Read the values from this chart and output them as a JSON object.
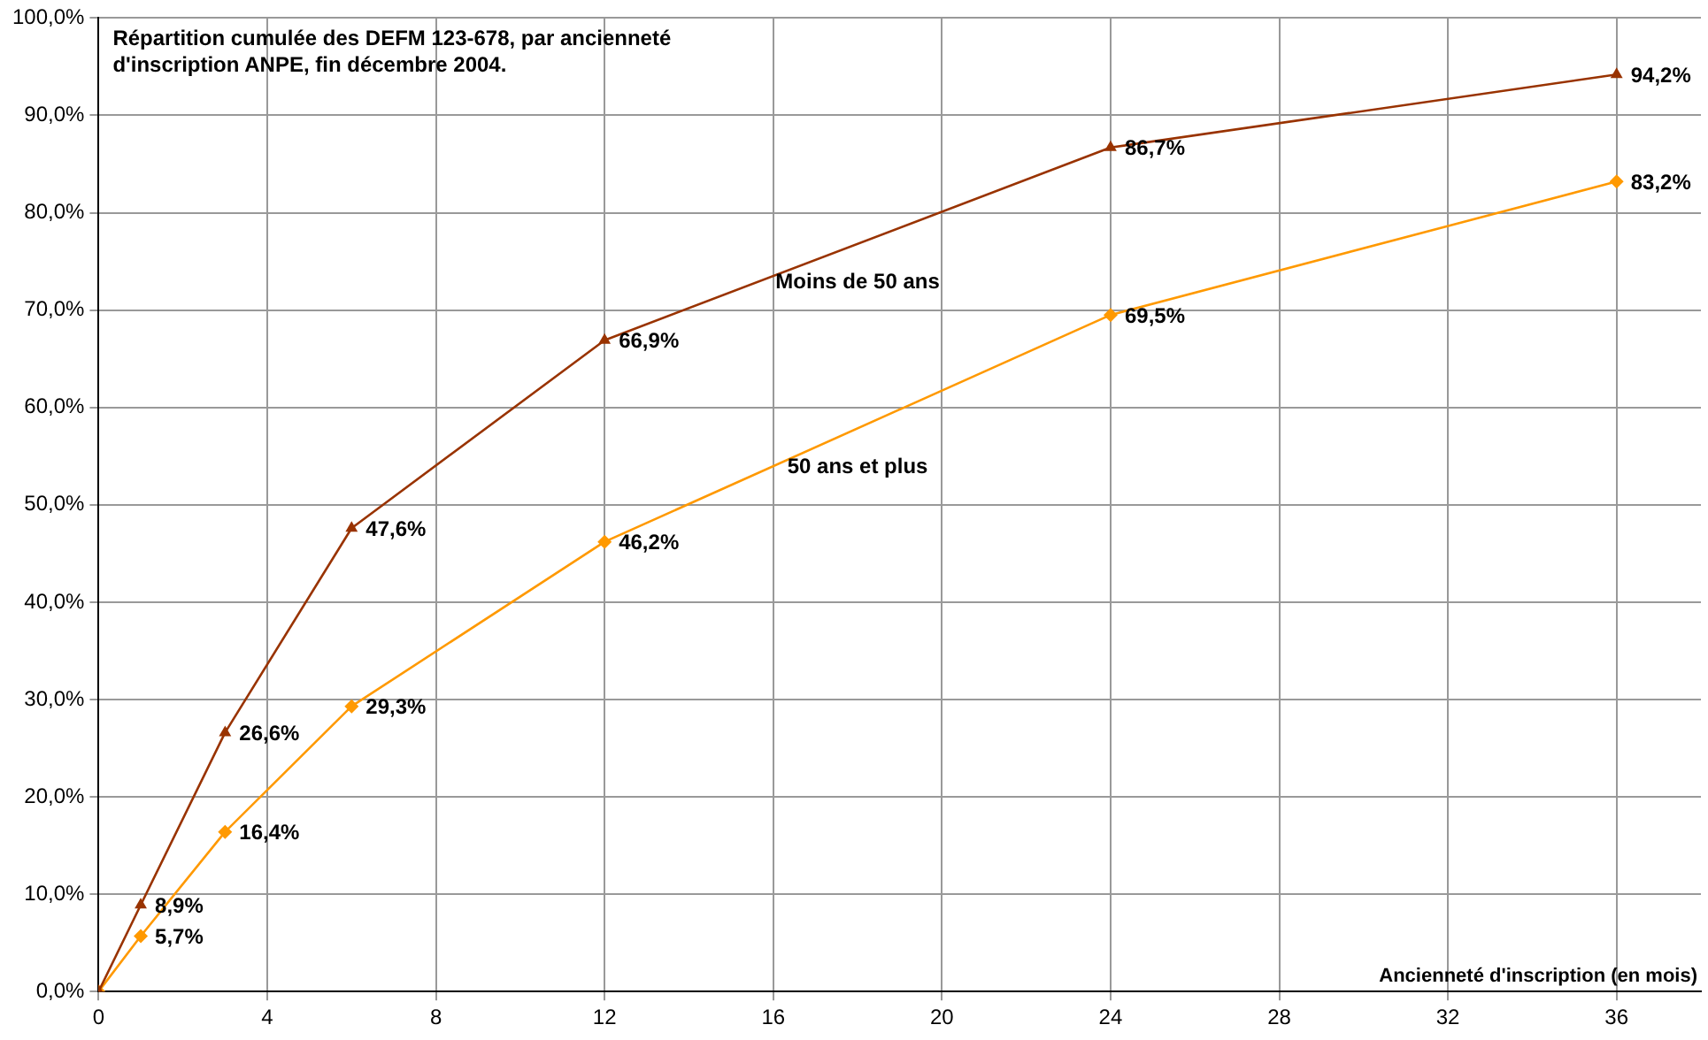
{
  "chart_data": {
    "type": "line",
    "title": "Répartition cumulée des DEFM 123-678, par ancienneté\nd'inscription ANPE, fin décembre 2004.",
    "xlabel": "Ancienneté d'inscription (en mois)",
    "x": [
      0,
      1,
      3,
      6,
      12,
      24,
      36
    ],
    "series": [
      {
        "name": "Moins de 50 ans",
        "color": "#993300",
        "marker": "triangle",
        "values": [
          0,
          8.9,
          26.6,
          47.6,
          66.9,
          86.7,
          94.2
        ],
        "value_labels": [
          null,
          "8,9%",
          "26,6%",
          "47,6%",
          "66,9%",
          "86,7%",
          "94,2%"
        ]
      },
      {
        "name": "50 ans et plus",
        "color": "#ff9900",
        "marker": "diamond",
        "values": [
          0,
          5.7,
          16.4,
          29.3,
          46.2,
          69.5,
          83.2
        ],
        "value_labels": [
          null,
          "5,7%",
          "16,4%",
          "29,3%",
          "46,2%",
          "69,5%",
          "83,2%"
        ]
      }
    ],
    "xlim": [
      0,
      38
    ],
    "xticks": [
      0,
      4,
      8,
      12,
      16,
      20,
      24,
      28,
      32,
      36
    ],
    "ylim": [
      0,
      100
    ],
    "yticks": [
      {
        "value": 0,
        "label": "0,0%"
      },
      {
        "value": 10,
        "label": "10,0%"
      },
      {
        "value": 20,
        "label": "20,0%"
      },
      {
        "value": 30,
        "label": "30,0%"
      },
      {
        "value": 40,
        "label": "40,0%"
      },
      {
        "value": 50,
        "label": "50,0%"
      },
      {
        "value": 60,
        "label": "60,0%"
      },
      {
        "value": 70,
        "label": "70,0%"
      },
      {
        "value": 80,
        "label": "80,0%"
      },
      {
        "value": 90,
        "label": "90,0%"
      },
      {
        "value": 100,
        "label": "100,0%"
      }
    ],
    "grid": true,
    "legend": false,
    "line_style": "solid"
  }
}
